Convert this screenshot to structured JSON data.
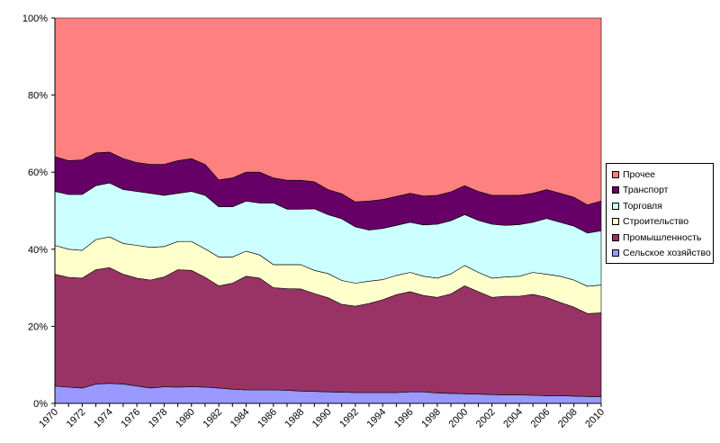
{
  "chart_data": {
    "type": "area",
    "stacked": true,
    "normalized_percent": true,
    "title": "",
    "xlabel": "",
    "ylabel": "",
    "ylim": [
      0,
      100
    ],
    "y_ticks": [
      "0%",
      "20%",
      "40%",
      "60%",
      "80%",
      "100%"
    ],
    "x": [
      1970,
      1971,
      1972,
      1973,
      1974,
      1975,
      1976,
      1977,
      1978,
      1979,
      1980,
      1981,
      1982,
      1983,
      1984,
      1985,
      1986,
      1987,
      1988,
      1989,
      1990,
      1991,
      1992,
      1993,
      1994,
      1995,
      1996,
      1997,
      1998,
      1999,
      2000,
      2001,
      2002,
      2003,
      2004,
      2005,
      2006,
      2007,
      2008,
      2009,
      2010
    ],
    "x_ticks": [
      "1970",
      "1972",
      "1974",
      "1976",
      "1978",
      "1980",
      "1982",
      "1984",
      "1986",
      "1988",
      "1990",
      "1992",
      "1994",
      "1996",
      "1998",
      "2000",
      "2002",
      "2004",
      "2006",
      "2008",
      "2010"
    ],
    "legend_position": "right",
    "series": [
      {
        "name": "Сельское хозяйство",
        "color": "#9999ff",
        "values": [
          4.5,
          4.2,
          4.0,
          5.0,
          5.2,
          5.0,
          4.5,
          4.0,
          4.3,
          4.2,
          4.3,
          4.2,
          4.0,
          3.7,
          3.5,
          3.5,
          3.5,
          3.4,
          3.2,
          3.1,
          3.0,
          2.9,
          2.8,
          2.8,
          2.8,
          2.8,
          3.0,
          3.0,
          2.7,
          2.6,
          2.5,
          2.4,
          2.3,
          2.2,
          2.2,
          2.1,
          2.0,
          2.0,
          1.9,
          1.8,
          1.7
        ]
      },
      {
        "name": "Промышленность",
        "color": "#993366",
        "values": [
          29.0,
          28.5,
          28.5,
          29.7,
          30.0,
          28.5,
          28.0,
          28.0,
          28.5,
          30.5,
          30.2,
          28.5,
          26.5,
          27.5,
          29.5,
          29.0,
          26.5,
          26.4,
          26.5,
          25.4,
          24.4,
          22.8,
          22.4,
          23.1,
          24.1,
          25.4,
          26.0,
          25.0,
          24.8,
          25.8,
          28.0,
          26.6,
          25.2,
          25.6,
          25.6,
          26.2,
          25.5,
          24.2,
          23.1,
          21.5,
          21.8
        ]
      },
      {
        "name": "Строительство",
        "color": "#ffffcc",
        "values": [
          7.5,
          7.3,
          7.2,
          7.8,
          8.0,
          8.0,
          8.5,
          8.5,
          7.9,
          7.3,
          7.5,
          7.4,
          7.5,
          6.8,
          6.5,
          6.0,
          6.0,
          6.2,
          6.3,
          6.0,
          6.3,
          6.2,
          6.0,
          5.8,
          5.2,
          5.0,
          5.0,
          5.0,
          5.0,
          5.2,
          5.3,
          5.0,
          5.0,
          5.0,
          5.2,
          5.7,
          6.0,
          6.8,
          7.0,
          7.1,
          7.2
        ]
      },
      {
        "name": "Торговля",
        "color": "#ccffff",
        "values": [
          14.0,
          14.2,
          14.5,
          14.0,
          14.0,
          14.0,
          14.0,
          14.0,
          13.3,
          12.5,
          13.0,
          13.9,
          13.0,
          13.0,
          13.0,
          13.5,
          16.0,
          14.4,
          14.4,
          16.0,
          15.3,
          16.0,
          14.6,
          13.3,
          13.3,
          13.0,
          13.0,
          13.3,
          14.0,
          13.8,
          13.2,
          13.5,
          14.0,
          13.4,
          13.4,
          13.0,
          14.5,
          14.0,
          14.0,
          13.8,
          14.1
        ]
      },
      {
        "name": "Транспорт",
        "color": "#660066",
        "values": [
          9.0,
          8.8,
          9.0,
          8.5,
          8.0,
          8.0,
          7.5,
          7.5,
          8.0,
          8.5,
          8.5,
          8.0,
          7.0,
          7.5,
          7.5,
          8.0,
          6.5,
          7.5,
          7.5,
          7.0,
          6.5,
          6.5,
          6.5,
          7.5,
          7.5,
          7.5,
          7.5,
          7.5,
          7.5,
          7.5,
          7.5,
          7.5,
          7.5,
          7.8,
          7.6,
          7.5,
          7.5,
          7.5,
          7.5,
          7.3,
          7.7
        ]
      },
      {
        "name": "Прочее",
        "color": "#ff8080",
        "values": [
          36.0,
          37.0,
          36.8,
          35.0,
          34.8,
          36.5,
          37.5,
          38.0,
          38.0,
          37.0,
          36.5,
          38.0,
          42.0,
          41.5,
          40.0,
          40.0,
          41.5,
          42.1,
          42.1,
          42.5,
          44.5,
          45.6,
          47.7,
          47.5,
          47.1,
          46.3,
          45.5,
          46.2,
          46.0,
          45.1,
          43.5,
          45.0,
          46.0,
          46.0,
          46.0,
          45.5,
          44.5,
          45.5,
          46.5,
          48.5,
          47.5
        ]
      }
    ]
  }
}
